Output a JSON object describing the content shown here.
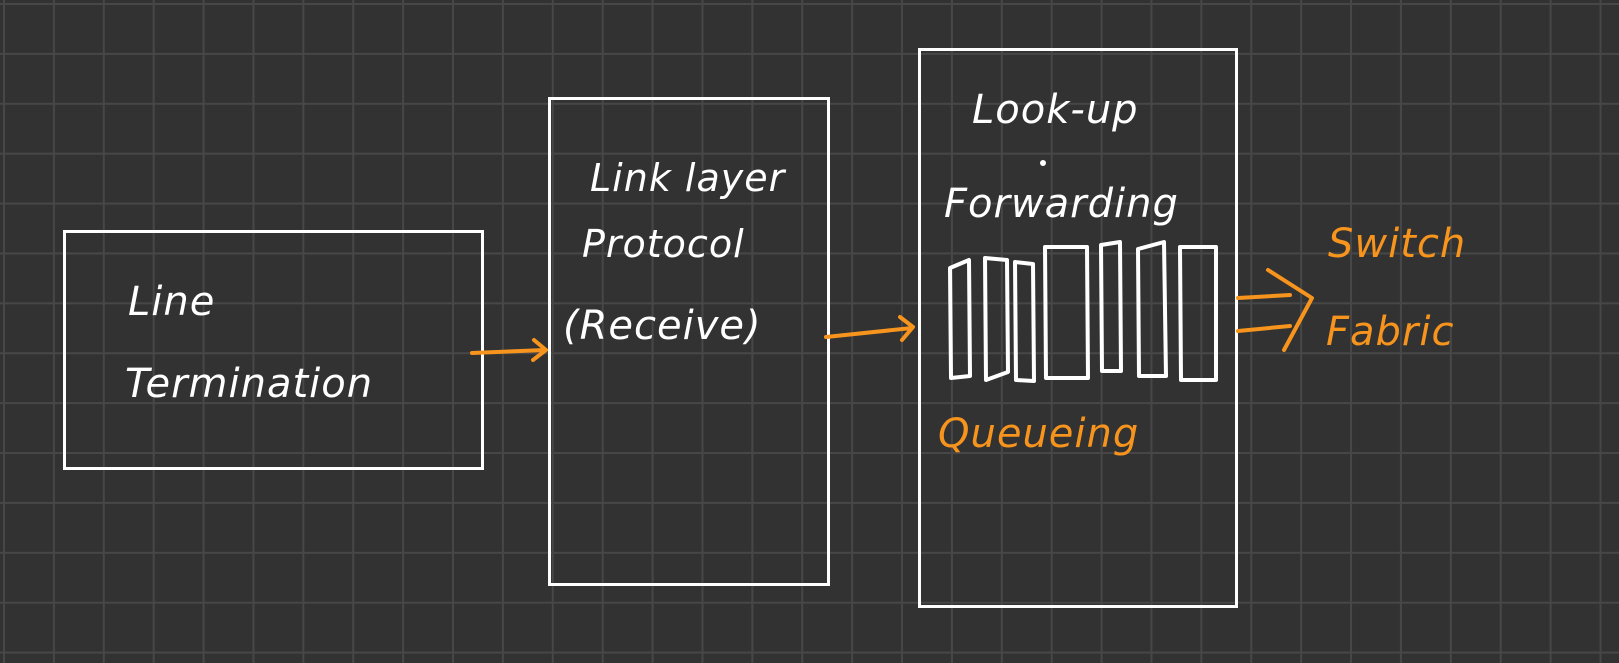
{
  "colors": {
    "background": "#323232",
    "grid": "#474747",
    "box_stroke": "#ffffff",
    "accent": "#f7941d"
  },
  "blocks": {
    "line_termination": {
      "line1": "Line",
      "line2": "Termination"
    },
    "link_layer": {
      "line1": "Link layer",
      "line2": "Protocol",
      "line3": "(Receive)"
    },
    "lookup": {
      "line1": "Look-up",
      "line2": "Forwarding"
    }
  },
  "queueing_label": "Queueing",
  "switch_fabric": {
    "line1": "Switch",
    "line2": "Fabric"
  }
}
